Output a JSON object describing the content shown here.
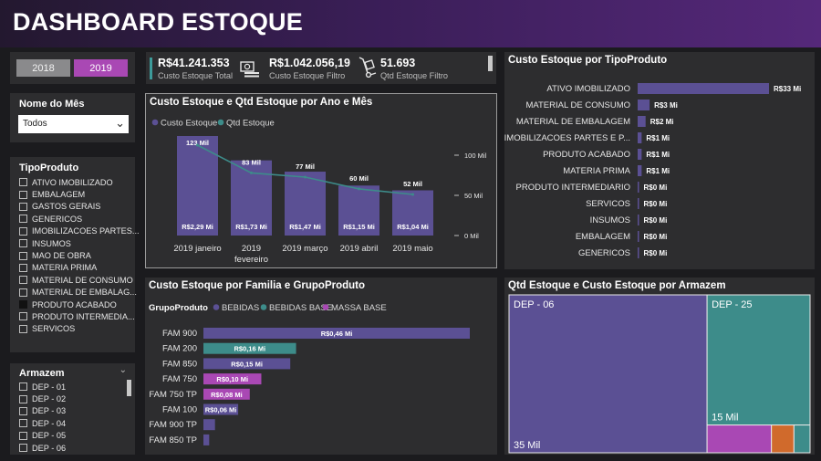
{
  "header": {
    "title": "DASHBOARD ESTOQUE"
  },
  "years": {
    "items": [
      "2018",
      "2019"
    ],
    "selected": "2019"
  },
  "mes": {
    "title": "Nome do Mês",
    "value": "Todos"
  },
  "tipo": {
    "title": "TipoProduto",
    "items": [
      "ATIVO IMOBILIZADO",
      "EMBALAGEM",
      "GASTOS GERAIS",
      "GENERICOS",
      "IMOBILIZACOES PARTES...",
      "INSUMOS",
      "MAO DE OBRA",
      "MATERIA PRIMA",
      "MATERIAL DE CONSUMO",
      "MATERIAL DE EMBALAG...",
      "PRODUTO ACABADO",
      "PRODUTO INTERMEDIA...",
      "SERVICOS"
    ],
    "checked_index": 10
  },
  "armazem_filter": {
    "title": "Armazem",
    "items": [
      "DEP - 01",
      "DEP - 02",
      "DEP - 03",
      "DEP - 04",
      "DEP - 05",
      "DEP - 06"
    ]
  },
  "kpi": {
    "total_value": "R$41.241.353",
    "total_label": "Custo Estoque Total",
    "filtro_value": "R$1.042.056,19",
    "filtro_label": "Custo Estoque Filtro",
    "qtd_value": "51.693",
    "qtd_label": "Qtd Estoque Filtro"
  },
  "colors": {
    "purple": "#5b5094",
    "teal": "#3d8c8a",
    "pink": "#a948b4",
    "orange": "#d06a2c"
  },
  "chart_data": [
    {
      "id": "combo",
      "type": "bar",
      "title": "Custo Estoque e Qtd Estoque por Ano e Mês",
      "legend": [
        "Custo Estoque",
        "Qtd Estoque"
      ],
      "legend_position": "top-left",
      "categories": [
        "2019 janeiro",
        "2019 fevereiro",
        "2019 março",
        "2019 abril",
        "2019 maio"
      ],
      "bar_values": [
        2.29,
        1.73,
        1.47,
        1.15,
        1.04
      ],
      "bar_labels": [
        "R$2,29 Mi",
        "R$1,73 Mi",
        "R$1,47 Mi",
        "R$1,15 Mi",
        "R$1,04 Mi"
      ],
      "line_values": [
        123,
        83,
        77,
        60,
        52
      ],
      "line_labels": [
        "123 Mil",
        "83 Mil",
        "77 Mil",
        "60 Mil",
        "52 Mil"
      ],
      "y2_ticks": [
        "100 Mil",
        "50 Mil",
        "0 Mil"
      ],
      "y2_tick_values": [
        100,
        50,
        0
      ],
      "y2lim": [
        0,
        130
      ],
      "ylim": [
        0,
        2.5
      ]
    },
    {
      "id": "familia",
      "type": "bar",
      "orientation": "horizontal",
      "title": "Custo Estoque por Familia e GrupoProduto",
      "legend_title": "GrupoProduto",
      "series_names": [
        "BEBIDAS",
        "BEBIDAS BASE",
        "MASSA BASE"
      ],
      "categories": [
        "FAM 900",
        "FAM 200",
        "FAM 850",
        "FAM 750",
        "FAM 750 TP",
        "FAM 100",
        "FAM 900 TP",
        "FAM 850 TP"
      ],
      "values": [
        0.46,
        0.16,
        0.15,
        0.1,
        0.08,
        0.06,
        0.02,
        0.01
      ],
      "labels": [
        "R$0,46 Mi",
        "R$0,16 Mi",
        "R$0,15 Mi",
        "R$0,10 Mi",
        "R$0,08 Mi",
        "R$0,06 Mi",
        "",
        ""
      ],
      "series_index": [
        0,
        1,
        0,
        2,
        2,
        0,
        0,
        0
      ],
      "xlim": [
        0,
        0.5
      ]
    },
    {
      "id": "tipoprod",
      "type": "bar",
      "orientation": "horizontal",
      "title": "Custo Estoque por TipoProduto",
      "categories": [
        "ATIVO IMOBILIZADO",
        "MATERIAL DE CONSUMO",
        "MATERIAL DE EMBALAGEM",
        "IMOBILIZACOES PARTES E P...",
        "PRODUTO ACABADO",
        "MATERIA PRIMA",
        "PRODUTO INTERMEDIARIO",
        "SERVICOS",
        "INSUMOS",
        "EMBALAGEM",
        "GENERICOS"
      ],
      "values": [
        33,
        3,
        2,
        1,
        1,
        1,
        0,
        0,
        0,
        0,
        0
      ],
      "labels": [
        "R$33 Mi",
        "R$3 Mi",
        "R$2 Mi",
        "R$1 Mi",
        "R$1 Mi",
        "R$1 Mi",
        "R$0 Mi",
        "R$0 Mi",
        "R$0 Mi",
        "R$0 Mi",
        "R$0 Mi"
      ],
      "xlim": [
        0,
        35
      ]
    },
    {
      "id": "armazem",
      "type": "treemap",
      "title": "Qtd Estoque e Custo Estoque por Armazem",
      "items": [
        {
          "name": "DEP - 06",
          "value": 35,
          "label": "35 Mil",
          "color": "#5b5094"
        },
        {
          "name": "DEP - 25",
          "value": 15,
          "label": "15 Mil",
          "color": "#3d8c8a"
        },
        {
          "name": "",
          "value": 2,
          "label": "",
          "color": "#a948b4"
        },
        {
          "name": "",
          "value": 0.7,
          "label": "",
          "color": "#d06a2c"
        },
        {
          "name": "",
          "value": 0.5,
          "label": "",
          "color": "#3d8c8a"
        }
      ]
    }
  ]
}
